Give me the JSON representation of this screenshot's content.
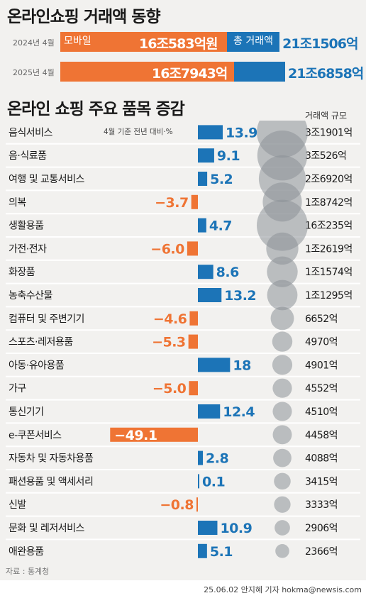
{
  "header": {
    "title": "온라인쇼핑 거래액 동향",
    "mobile_label": "모바일",
    "total_label": "총 거래액",
    "years": [
      {
        "label": "2024년 4월",
        "mobile": "16조583억원",
        "total": "21조1506억",
        "mobile_value": 16.0583,
        "total_value": 21.1506
      },
      {
        "label": "2025년 4월",
        "mobile": "16조7943억",
        "total": "21조6858억",
        "mobile_value": 16.7943,
        "total_value": 21.6858
      }
    ]
  },
  "section2": {
    "title": "온라인 쇼핑 주요 품목 증감",
    "note": "4월 기준 전년 대비·%",
    "size_header": "거래액 규모"
  },
  "colors": {
    "positive": "#1c74b7",
    "negative": "#ef7434",
    "bubble": "#8d9197",
    "row_line": "#ffffff"
  },
  "chart_data": {
    "type": "bar",
    "title": "온라인 쇼핑 주요 품목 증감",
    "categories": [
      "음식서비스",
      "음·식료품",
      "여행 및 교통서비스",
      "의복",
      "생활용품",
      "가전·전자",
      "화장품",
      "농축수산물",
      "컴퓨터 및 주변기기",
      "스포츠·레저용품",
      "아동·유아용품",
      "가구",
      "통신기기",
      "e-쿠폰서비스",
      "자동차 및 자동차용품",
      "패션용품 및 액세서리",
      "신발",
      "문화 및 레저서비스",
      "애완용품"
    ],
    "series": [
      {
        "values": [
          13.9,
          9.1,
          5.2,
          -3.7,
          4.7,
          -6.0,
          8.6,
          13.2,
          -4.6,
          -5.3,
          18,
          -5.0,
          12.4,
          -49.1,
          2.8,
          0.1,
          -0.8,
          10.9,
          5.1
        ]
      }
    ],
    "value_labels": [
      "13.9",
      "9.1",
      "5.2",
      "−3.7",
      "4.7",
      "−6.0",
      "8.6",
      "13.2",
      "−4.6",
      "−5.3",
      "18",
      "−5.0",
      "12.4",
      "−49.1",
      "2.8",
      "0.1",
      "−0.8",
      "10.9",
      "5.1"
    ],
    "sizes": [
      "3조1901억",
      "3조526억",
      "2조6920억",
      "1조8742억",
      "16조235억",
      "1조2619억",
      "1조1574억",
      "1조1295억",
      "6652억",
      "4970억",
      "4901억",
      "4552억",
      "4510억",
      "4458억",
      "4088억",
      "3415억",
      "3333억",
      "2906억",
      "2366억"
    ],
    "size_values": [
      31901,
      30526,
      26920,
      18742,
      160235,
      12619,
      11574,
      11295,
      6652,
      4970,
      4901,
      4552,
      4510,
      4458,
      4088,
      3415,
      3333,
      2906,
      2366
    ]
  },
  "footer": {
    "source": "자료 : 통계청",
    "credit": "25.06.02 안지혜 기자 hokma@newsis.com"
  }
}
